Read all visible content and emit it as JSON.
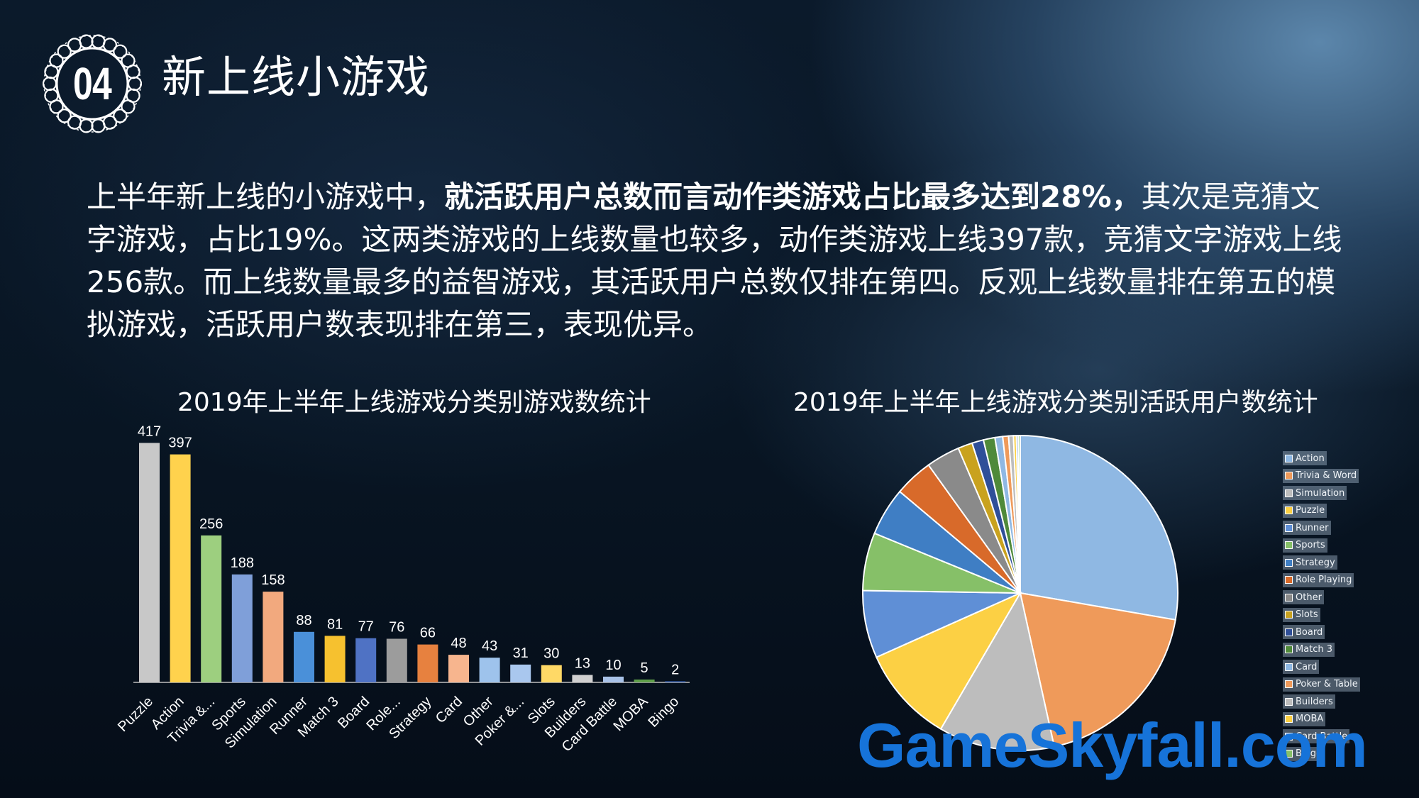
{
  "badge": {
    "number": "04"
  },
  "title": "新上线小游戏",
  "paragraph": {
    "part1": "上半年新上线的小游戏中，",
    "bold": "就活跃用户总数而言动作类游戏占比最多达到28%，",
    "part2": "其次是竞猜文字游戏，占比19%。这两类游戏的上线数量也较多，动作类游戏上线397款，竞猜文字游戏上线256款。而上线数量最多的益智游戏，其活跃用户总数仅排在第四。反观上线数量排在第五的模拟游戏，活跃用户数表现排在第三，表现优异。"
  },
  "watermark": "GameSkyfall.com",
  "chart_data": [
    {
      "type": "bar",
      "title": "2019年上半年上线游戏分类别游戏数统计",
      "categories": [
        "Puzzle",
        "Action",
        "Trivia &...",
        "Sports",
        "Simulation",
        "Runner",
        "Match 3",
        "Board",
        "Role...",
        "Strategy",
        "Card",
        "Other",
        "Poker &...",
        "Slots",
        "Builders",
        "Card Battle",
        "MOBA",
        "Bingo"
      ],
      "values": [
        417,
        397,
        256,
        188,
        158,
        88,
        81,
        77,
        76,
        66,
        48,
        43,
        31,
        30,
        13,
        10,
        5,
        2
      ],
      "colors": [
        "#c8c8c8",
        "#ffd24d",
        "#9dcf7f",
        "#7f9fd9",
        "#f2a97e",
        "#4a90d9",
        "#f6c12f",
        "#4f72c4",
        "#9c9c9c",
        "#e7813f",
        "#f7b58e",
        "#9ec3ec",
        "#a9c7ee",
        "#ffd966",
        "#d0d0d0",
        "#a8c2e8",
        "#5fa04a",
        "#3a62b0"
      ],
      "ylim": [
        0,
        420
      ],
      "grid": false
    },
    {
      "type": "pie",
      "title": "2019年上半年上线游戏分类别活跃用户数统计",
      "labels": [
        "Action",
        "Trivia & Word",
        "Simulation",
        "Puzzle",
        "Runner",
        "Sports",
        "Strategy",
        "Role Playing",
        "Other",
        "Slots",
        "Board",
        "Match 3",
        "Card",
        "Poker & Table",
        "Builders",
        "MOBA",
        "Card Battle",
        "Bingo"
      ],
      "values": [
        28,
        19,
        12,
        10,
        7,
        6,
        5,
        4,
        3.5,
        1.5,
        1.2,
        1.2,
        0.8,
        0.6,
        0.5,
        0.3,
        0.2,
        0.2
      ],
      "colors": [
        "#8fb8e3",
        "#ef9a5a",
        "#bdbdbd",
        "#fcd044",
        "#5f8fd6",
        "#86c068",
        "#3f7ec4",
        "#d86a2a",
        "#8a8a8a",
        "#c9a21f",
        "#2f4f99",
        "#4f8a3a",
        "#8fb8e3",
        "#ef9a5a",
        "#bdbdbd",
        "#fcd044",
        "#5f8fd6",
        "#86c068"
      ],
      "legend": "right"
    }
  ]
}
